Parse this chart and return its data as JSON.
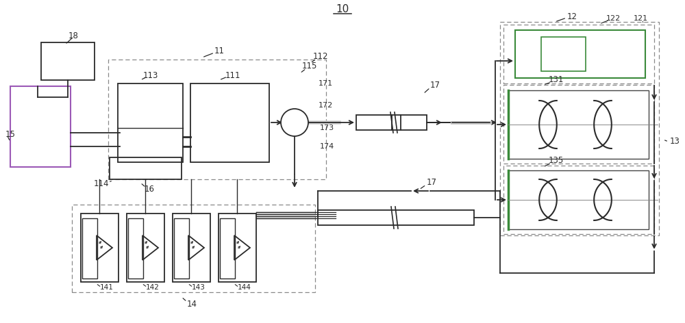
{
  "bg_color": "#ffffff",
  "lc": "#2a2a2a",
  "dc": "#888888",
  "gc": "#3a8a3a",
  "purple": "#9b59b6",
  "fig_width": 10.0,
  "fig_height": 4.72
}
